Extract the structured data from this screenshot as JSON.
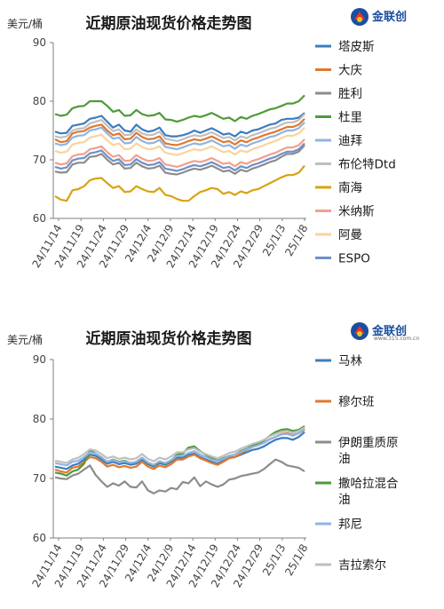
{
  "chart_data": [
    {
      "type": "line",
      "title": "近期原油现货价格走势图",
      "unit_label": "美元/桶",
      "brand": "金联创",
      "ylim": [
        60,
        90
      ],
      "yticks": [
        60,
        70,
        80,
        90
      ],
      "xticks": [
        "24/11/14",
        "24/11/19",
        "24/11/24",
        "24/11/29",
        "24/12/4",
        "24/12/9",
        "24/12/14",
        "24/12/19",
        "24/12/24",
        "24/12/29",
        "25/1/3",
        "25/1/8"
      ],
      "grid": false,
      "legend": "right",
      "series": [
        {
          "name": "塔皮斯",
          "color": "#3C7CC0",
          "values": [
            74.8,
            74.5,
            74.6,
            75.8,
            76.0,
            76.2,
            77.0,
            77.2,
            77.5,
            76.5,
            75.5,
            76.0,
            75.0,
            74.8,
            76.0,
            75.2,
            74.8,
            75.0,
            75.5,
            74.2,
            74.0,
            74.0,
            74.2,
            74.5,
            75.0,
            74.6,
            75.0,
            75.4,
            74.9,
            74.3,
            74.5,
            74.0,
            74.8,
            74.5,
            75.0,
            75.2,
            75.6,
            76.0,
            76.2,
            76.8,
            77.0,
            77.0,
            77.2,
            78.0
          ]
        },
        {
          "name": "大庆",
          "color": "#E0782F",
          "values": [
            73.5,
            73.0,
            73.2,
            74.5,
            74.8,
            74.9,
            75.5,
            75.8,
            76.0,
            75.0,
            74.2,
            74.5,
            73.5,
            73.6,
            74.6,
            73.9,
            73.5,
            73.6,
            74.0,
            72.8,
            72.6,
            72.5,
            72.8,
            73.2,
            73.5,
            73.3,
            73.6,
            74.0,
            73.5,
            73.0,
            73.2,
            72.6,
            73.3,
            73.0,
            73.5,
            73.8,
            74.2,
            74.5,
            74.8,
            75.2,
            75.6,
            75.6,
            76.0,
            77.0
          ]
        },
        {
          "name": "胜利",
          "color": "#8C8C8C",
          "values": [
            68.0,
            67.8,
            67.9,
            69.2,
            69.5,
            69.5,
            70.5,
            70.6,
            71.0,
            70.0,
            69.2,
            69.5,
            68.5,
            68.6,
            69.5,
            68.9,
            68.5,
            68.6,
            69.0,
            67.8,
            67.6,
            67.5,
            67.8,
            68.2,
            68.5,
            68.3,
            68.6,
            69.0,
            68.5,
            68.0,
            68.2,
            67.6,
            68.3,
            68.0,
            68.5,
            68.8,
            69.2,
            69.6,
            69.9,
            70.5,
            71.0,
            71.0,
            71.4,
            72.5
          ]
        },
        {
          "name": "杜里",
          "color": "#4E9A3A",
          "values": [
            77.8,
            77.5,
            77.7,
            78.8,
            79.1,
            79.2,
            80.0,
            80.0,
            80.0,
            79.2,
            78.2,
            78.5,
            77.5,
            77.6,
            78.5,
            77.8,
            77.5,
            77.6,
            78.0,
            76.9,
            76.8,
            76.5,
            76.8,
            77.2,
            77.5,
            77.3,
            77.6,
            78.0,
            77.5,
            77.0,
            77.2,
            76.6,
            77.3,
            77.0,
            77.5,
            77.8,
            78.2,
            78.6,
            78.8,
            79.2,
            79.6,
            79.6,
            80.0,
            81.0
          ]
        },
        {
          "name": "迪拜",
          "color": "#8FB4E3",
          "values": [
            72.8,
            72.5,
            72.7,
            73.8,
            74.1,
            74.2,
            75.0,
            75.2,
            75.5,
            74.5,
            73.6,
            73.8,
            72.8,
            72.9,
            73.9,
            73.2,
            72.8,
            72.9,
            73.4,
            72.2,
            72.0,
            71.8,
            72.1,
            72.5,
            72.8,
            72.6,
            72.9,
            73.3,
            72.8,
            72.3,
            72.5,
            71.9,
            72.6,
            72.3,
            72.8,
            73.1,
            73.5,
            73.9,
            74.1,
            74.6,
            75.0,
            75.0,
            75.4,
            76.4
          ]
        },
        {
          "name": "布伦特Dtd",
          "color": "#BFBFBF",
          "values": [
            74.0,
            73.8,
            74.0,
            75.0,
            75.3,
            75.4,
            76.2,
            76.5,
            76.8,
            75.8,
            74.9,
            75.2,
            74.2,
            74.3,
            75.2,
            74.5,
            74.2,
            74.3,
            74.8,
            73.6,
            73.4,
            73.2,
            73.5,
            73.9,
            74.2,
            74.0,
            74.3,
            74.7,
            74.2,
            73.7,
            73.9,
            73.3,
            74.0,
            73.7,
            74.2,
            74.5,
            74.9,
            75.3,
            75.5,
            76.0,
            76.4,
            76.4,
            76.8,
            77.8
          ]
        },
        {
          "name": "南海",
          "color": "#D8A312",
          "values": [
            63.8,
            63.2,
            63.0,
            64.8,
            65.0,
            65.5,
            66.5,
            66.8,
            66.9,
            66.0,
            65.2,
            65.5,
            64.5,
            64.6,
            65.5,
            65.0,
            64.6,
            64.5,
            65.2,
            64.0,
            63.8,
            63.3,
            63.0,
            63.0,
            63.8,
            64.5,
            64.8,
            65.2,
            65.0,
            64.2,
            64.5,
            64.0,
            64.6,
            64.3,
            64.8,
            65.0,
            65.5,
            66.0,
            66.5,
            67.0,
            67.4,
            67.4,
            67.8,
            69.0
          ]
        },
        {
          "name": "米纳斯",
          "color": "#F2A08C",
          "values": [
            69.5,
            69.2,
            69.4,
            70.6,
            70.9,
            71.0,
            71.8,
            72.0,
            72.3,
            71.3,
            70.5,
            70.8,
            69.8,
            69.9,
            70.8,
            70.2,
            69.8,
            69.9,
            70.3,
            69.2,
            69.0,
            68.8,
            69.1,
            69.5,
            69.8,
            69.6,
            69.9,
            70.3,
            69.8,
            69.3,
            69.5,
            68.9,
            69.6,
            69.3,
            69.8,
            70.1,
            70.5,
            70.9,
            71.2,
            71.7,
            72.1,
            72.1,
            72.5,
            73.5
          ]
        },
        {
          "name": "阿曼",
          "color": "#F9D49A",
          "values": [
            71.5,
            71.2,
            71.4,
            72.6,
            72.9,
            73.0,
            73.8,
            74.0,
            74.3,
            73.3,
            72.5,
            72.8,
            71.8,
            71.9,
            72.8,
            72.2,
            71.8,
            71.9,
            72.3,
            71.2,
            71.0,
            70.8,
            71.1,
            71.5,
            71.8,
            71.6,
            71.9,
            72.3,
            71.8,
            71.3,
            71.5,
            70.9,
            71.6,
            71.3,
            71.8,
            72.1,
            72.5,
            72.9,
            73.2,
            73.7,
            74.1,
            74.1,
            74.5,
            75.5
          ]
        },
        {
          "name": "ESPO",
          "color": "#6E8FCB",
          "values": [
            68.8,
            68.5,
            68.7,
            69.9,
            70.2,
            70.3,
            71.1,
            71.3,
            71.6,
            70.6,
            69.8,
            70.1,
            69.1,
            69.2,
            70.1,
            69.5,
            69.1,
            69.2,
            69.6,
            68.5,
            68.3,
            68.1,
            68.4,
            68.8,
            69.1,
            68.9,
            69.2,
            69.6,
            69.1,
            68.6,
            68.8,
            68.2,
            68.9,
            68.6,
            69.1,
            69.4,
            69.8,
            70.2,
            70.5,
            71.0,
            71.4,
            71.4,
            71.8,
            72.8
          ]
        }
      ]
    },
    {
      "type": "line",
      "title": "近期原油现货价格走势图",
      "unit_label": "美元/桶",
      "brand": "金联创",
      "ylim": [
        60,
        90
      ],
      "yticks": [
        60,
        70,
        80,
        90
      ],
      "xticks": [
        "24/11/14",
        "24/11/19",
        "24/11/24",
        "24/11/29",
        "24/12/4",
        "24/12/9",
        "24/12/14",
        "24/12/19",
        "24/12/24",
        "24/12/29",
        "25/1/3",
        "25/1/8"
      ],
      "grid": false,
      "legend": "right",
      "series": [
        {
          "name": "马林",
          "color": "#3C7CC0",
          "values": [
            72.0,
            71.8,
            71.6,
            72.2,
            72.5,
            73.2,
            74.0,
            73.8,
            73.2,
            72.5,
            72.8,
            72.4,
            72.6,
            72.3,
            72.5,
            73.2,
            72.4,
            72.0,
            72.6,
            72.3,
            72.8,
            73.5,
            73.5,
            74.0,
            74.2,
            73.6,
            73.2,
            72.8,
            72.5,
            73.0,
            73.5,
            73.6,
            74.0,
            74.4,
            74.8,
            75.0,
            75.4,
            76.0,
            76.5,
            76.8,
            76.8,
            76.5,
            77.0,
            77.8
          ]
        },
        {
          "name": "穆尔班",
          "color": "#E0782F",
          "values": [
            71.5,
            71.2,
            71.0,
            71.8,
            72.0,
            72.8,
            73.6,
            73.4,
            72.8,
            72.0,
            72.3,
            71.9,
            72.1,
            71.8,
            72.0,
            72.8,
            72.0,
            71.6,
            72.2,
            71.9,
            72.4,
            73.2,
            73.2,
            73.7,
            74.0,
            73.4,
            73.0,
            72.6,
            72.3,
            72.8,
            73.4,
            73.6,
            74.2,
            74.8,
            75.3,
            75.6,
            76.0,
            76.6,
            77.0,
            77.5,
            77.6,
            77.3,
            77.6,
            78.2
          ]
        },
        {
          "name": "伊朗重质原油",
          "color": "#8C8C8C",
          "values": [
            70.2,
            70.0,
            69.9,
            70.5,
            70.8,
            71.5,
            72.2,
            70.6,
            69.5,
            68.6,
            69.2,
            68.8,
            69.5,
            68.6,
            68.5,
            69.5,
            68.0,
            67.5,
            68.0,
            67.8,
            68.4,
            68.2,
            69.4,
            69.2,
            70.2,
            68.7,
            69.5,
            69.0,
            68.6,
            69.0,
            69.8,
            70.0,
            70.4,
            70.6,
            70.8,
            71.0,
            71.6,
            72.4,
            73.2,
            72.8,
            72.2,
            72.0,
            71.8,
            71.2
          ]
        },
        {
          "name": "撒哈拉混合油",
          "color": "#4E9A3A",
          "values": [
            71.0,
            70.8,
            70.5,
            71.2,
            71.5,
            72.5,
            74.8,
            74.2,
            73.5,
            72.8,
            73.2,
            72.8,
            73.0,
            72.6,
            72.8,
            73.5,
            72.6,
            72.2,
            72.8,
            72.5,
            73.0,
            74.0,
            74.2,
            75.2,
            75.4,
            74.6,
            74.0,
            73.4,
            73.0,
            73.4,
            73.8,
            74.0,
            74.6,
            75.0,
            75.5,
            75.8,
            76.4,
            77.2,
            77.8,
            78.2,
            78.3,
            78.0,
            78.2,
            78.8
          ]
        },
        {
          "name": "邦尼",
          "color": "#8FB4E3",
          "values": [
            72.6,
            72.4,
            72.2,
            72.8,
            73.0,
            73.6,
            74.4,
            74.2,
            73.6,
            72.8,
            73.1,
            72.7,
            72.9,
            72.6,
            72.8,
            73.5,
            72.7,
            72.3,
            72.9,
            72.6,
            73.1,
            73.8,
            73.8,
            74.3,
            74.6,
            74.0,
            73.6,
            73.2,
            72.9,
            73.3,
            73.8,
            74.0,
            74.5,
            74.9,
            75.3,
            75.6,
            76.0,
            76.6,
            77.0,
            77.4,
            77.5,
            77.2,
            77.6,
            78.4
          ]
        },
        {
          "name": "吉拉索尔",
          "color": "#BFBFBF",
          "values": [
            73.0,
            72.8,
            72.6,
            73.2,
            73.5,
            74.1,
            74.9,
            74.7,
            74.1,
            73.4,
            73.7,
            73.3,
            73.5,
            73.2,
            73.4,
            74.1,
            73.3,
            72.9,
            73.5,
            73.2,
            73.7,
            74.4,
            74.4,
            74.9,
            75.1,
            74.5,
            74.1,
            73.7,
            73.4,
            73.8,
            74.3,
            74.5,
            75.0,
            75.4,
            75.8,
            76.1,
            76.5,
            77.1,
            77.5,
            77.9,
            78.0,
            77.7,
            78.0,
            78.6
          ]
        }
      ]
    }
  ],
  "logo": {
    "brand": "金联创",
    "sub": "www.315.com.cn"
  }
}
